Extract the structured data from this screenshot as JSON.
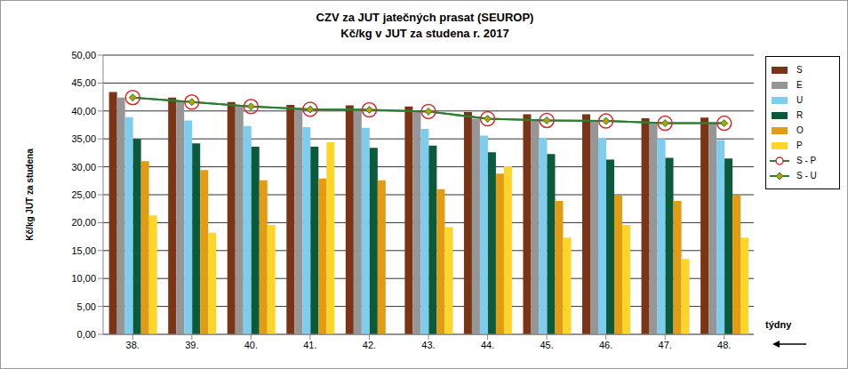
{
  "chart_data": {
    "type": "bar",
    "title": "CZV za JUT jatečných prasat (SEUROP)",
    "subtitle": "Kč/kg v JUT za studena r. 2017",
    "x_label": "týdny",
    "y_label": "Kč/kg JUT za studena",
    "categories": [
      "38.",
      "39.",
      "40.",
      "41.",
      "42.",
      "43.",
      "44.",
      "45.",
      "46.",
      "47.",
      "48."
    ],
    "series": [
      {
        "name": "S",
        "color": "#7b3416",
        "values": [
          43.4,
          42.4,
          41.6,
          41.1,
          41.0,
          40.8,
          39.8,
          39.4,
          39.4,
          38.7,
          38.8
        ]
      },
      {
        "name": "E",
        "color": "#969696",
        "values": [
          42.4,
          41.7,
          40.9,
          40.4,
          40.4,
          40.0,
          38.6,
          38.3,
          38.3,
          37.8,
          37.8
        ]
      },
      {
        "name": "U",
        "color": "#7fcdee",
        "values": [
          38.9,
          38.3,
          37.3,
          37.1,
          37.0,
          36.8,
          35.6,
          35.2,
          35.2,
          35.0,
          34.8
        ]
      },
      {
        "name": "R",
        "color": "#0b5a3c",
        "values": [
          35.0,
          34.2,
          33.6,
          33.6,
          33.4,
          33.8,
          32.6,
          32.3,
          31.3,
          31.6,
          31.5
        ]
      },
      {
        "name": "O",
        "color": "#e39b13",
        "values": [
          31.0,
          29.4,
          27.6,
          27.9,
          27.6,
          26.0,
          28.8,
          23.9,
          24.9,
          23.9,
          24.9
        ]
      },
      {
        "name": "P",
        "color": "#ffd52a",
        "values": [
          21.3,
          18.2,
          19.6,
          34.4,
          null,
          19.2,
          30.1,
          17.3,
          19.6,
          13.5,
          17.3
        ]
      },
      {
        "name": "S - P",
        "type": "line",
        "color": "#d62a2a",
        "marker": "circle",
        "values": [
          42.4,
          41.6,
          40.8,
          40.3,
          40.2,
          39.9,
          38.6,
          38.3,
          38.2,
          37.8,
          37.8
        ]
      },
      {
        "name": "S - U",
        "type": "line",
        "color": "#2e7d32",
        "marker": "diamond",
        "values": [
          42.4,
          41.6,
          40.8,
          40.3,
          40.2,
          39.9,
          38.6,
          38.3,
          38.2,
          37.8,
          37.8
        ]
      }
    ],
    "ylim": [
      0,
      50
    ],
    "yticks": [
      {
        "value": 0,
        "label": "0,00"
      },
      {
        "value": 5,
        "label": "5,00"
      },
      {
        "value": 10,
        "label": "10,00"
      },
      {
        "value": 15,
        "label": "15,00"
      },
      {
        "value": 20,
        "label": "20,00"
      },
      {
        "value": 25,
        "label": "25,00"
      },
      {
        "value": 30,
        "label": "30,00"
      },
      {
        "value": 35,
        "label": "35,00"
      },
      {
        "value": 40,
        "label": "40,00"
      },
      {
        "value": 45,
        "label": "45,00"
      },
      {
        "value": 50,
        "label": "50,00"
      }
    ],
    "grid": true,
    "legend": "right"
  }
}
